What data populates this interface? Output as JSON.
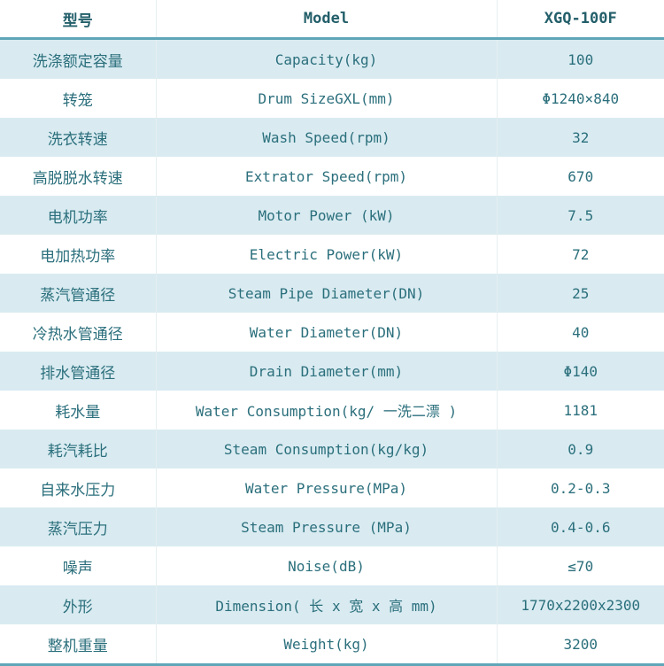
{
  "header": {
    "col1": "型号",
    "col2": "Model",
    "col3": "XGQ-100F"
  },
  "rows": [
    {
      "zh": "洗涤额定容量",
      "en": "Capacity(kg)",
      "value": "100"
    },
    {
      "zh": "转笼",
      "en": "Drum SizeGXL(mm)",
      "value": "Φ1240×840"
    },
    {
      "zh": "洗衣转速",
      "en": "Wash Speed(rpm)",
      "value": "32"
    },
    {
      "zh": "高脱脱水转速",
      "en": "Extrator Speed(rpm)",
      "value": "670"
    },
    {
      "zh": "电机功率",
      "en": "Motor Power (kW)",
      "value": "7.5"
    },
    {
      "zh": "电加热功率",
      "en": "Electric Power(kW)",
      "value": "72"
    },
    {
      "zh": "蒸汽管通径",
      "en": "Steam Pipe Diameter(DN)",
      "value": "25"
    },
    {
      "zh": "冷热水管通径",
      "en": "Water Diameter(DN)",
      "value": "40"
    },
    {
      "zh": "排水管通径",
      "en": "Drain Diameter(mm)",
      "value": "Φ140"
    },
    {
      "zh": "耗水量",
      "en": "Water Consumption(kg/ 一洗二漂 )",
      "value": "1181"
    },
    {
      "zh": "耗汽耗比",
      "en": "Steam Consumption(kg/kg)",
      "value": "0.9"
    },
    {
      "zh": "自来水压力",
      "en": "Water Pressure(MPa)",
      "value": "0.2-0.3"
    },
    {
      "zh": "蒸汽压力",
      "en": "Steam Pressure (MPa)",
      "value": "0.4-0.6"
    },
    {
      "zh": "噪声",
      "en": "Noise(dB)",
      "value": "≤70"
    },
    {
      "zh": "外形",
      "en": "Dimension( 长 x 宽 x 高 mm)",
      "value": "1770x2200x2300"
    },
    {
      "zh": "整机重量",
      "en": "Weight(kg)",
      "value": "3200"
    }
  ],
  "colors": {
    "text": "#2b6f7c",
    "shade": "#d9ebf1",
    "rule": "#5fa6b8"
  }
}
